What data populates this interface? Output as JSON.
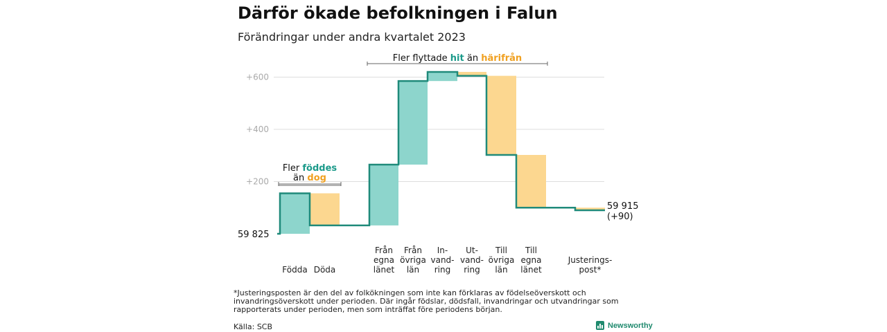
{
  "title": "Därför ökade befolkningen i Falun",
  "subtitle": "Förändringar under andra kvartalet 2023",
  "footnote": "*Justeringsposten är den del av folkökningen som inte kan förklaras av födelseöverskott och invandringsöverskott under perioden. Där ingår födslar, dödsfall, invandringar och utvandringar som rapporterats under perioden, men som inträffat före periodens början.",
  "source": "Källa: SCB",
  "brand": "Newsworthy",
  "colors": {
    "increase": "#8dd5cc",
    "decrease": "#fcd790",
    "line": "#1f8a7a",
    "accent_teal": "#1b9a8a",
    "accent_orange": "#f0a020",
    "grid": "#dddddd",
    "tick": "#aaaaaa"
  },
  "chart_data": {
    "type": "bar",
    "subtype": "waterfall",
    "baseline_label": "59  825",
    "end_label": [
      "59 915",
      "(+90)"
    ],
    "y_ticks": [
      "+200",
      "+400",
      "+600"
    ],
    "y_tick_values": [
      200,
      400,
      600
    ],
    "ylim": [
      0,
      660
    ],
    "categories": [
      [
        "Födda"
      ],
      [
        "Döda"
      ],
      [
        "Från",
        "egna",
        "länet"
      ],
      [
        "Från",
        "övriga",
        "län"
      ],
      [
        "In-",
        "vand-",
        "ring"
      ],
      [
        "Ut-",
        "vand-",
        "ring"
      ],
      [
        "Till",
        "övriga",
        "län"
      ],
      [
        "Till",
        "egna",
        "länet"
      ],
      [
        "Justerings-",
        "post*"
      ]
    ],
    "steps": [
      {
        "start": 0,
        "end": 155
      },
      {
        "start": 155,
        "end": 32
      },
      {
        "start": 32,
        "end": 265
      },
      {
        "start": 265,
        "end": 585
      },
      {
        "start": 585,
        "end": 620
      },
      {
        "start": 620,
        "end": 605
      },
      {
        "start": 605,
        "end": 302
      },
      {
        "start": 302,
        "end": 100
      },
      {
        "start": 100,
        "end": 90
      }
    ],
    "final_value": 90,
    "annotations": [
      {
        "parts": [
          [
            "Fler ",
            "normal"
          ],
          [
            "föddes",
            "teal"
          ]
        ],
        "line2": [
          [
            "än ",
            "normal"
          ],
          [
            "dog",
            "orange"
          ]
        ]
      },
      {
        "parts": [
          [
            "Fler flyttade ",
            "normal"
          ],
          [
            "hit",
            "teal"
          ],
          [
            " än ",
            "normal"
          ],
          [
            "härifrån",
            "orange"
          ]
        ]
      }
    ]
  }
}
